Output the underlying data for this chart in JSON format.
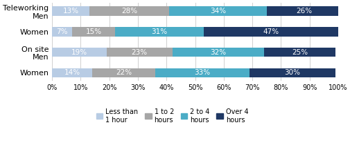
{
  "categories": [
    "Teleworking\nMen",
    "Women",
    "On site\nMen",
    "Women"
  ],
  "series": {
    "Less than\n1 hour": [
      13,
      7,
      19,
      14
    ],
    "1 to 2\nhours": [
      28,
      15,
      23,
      22
    ],
    "2 to 4\nhours": [
      34,
      31,
      32,
      33
    ],
    "Over 4\nhours": [
      26,
      47,
      25,
      30
    ]
  },
  "colors": [
    "#b8cce4",
    "#a6a6a6",
    "#4bacc6",
    "#1f3864"
  ],
  "bar_height": 0.45,
  "xlim": [
    0,
    100
  ],
  "xticks": [
    0,
    10,
    20,
    30,
    40,
    50,
    60,
    70,
    80,
    90,
    100
  ],
  "xtick_labels": [
    "0%",
    "10%",
    "20%",
    "30%",
    "40%",
    "50%",
    "60%",
    "70%",
    "80%",
    "90%",
    "100%"
  ],
  "legend_labels": [
    "Less than\n1 hour",
    "1 to 2\nhours",
    "2 to 4\nhours",
    "Over 4\nhours"
  ],
  "bg_color": "#ffffff",
  "grid_color": "#d0d0d0",
  "label_fontsize": 7.5,
  "tick_fontsize": 7,
  "legend_fontsize": 7,
  "ytick_fontsize": 8
}
